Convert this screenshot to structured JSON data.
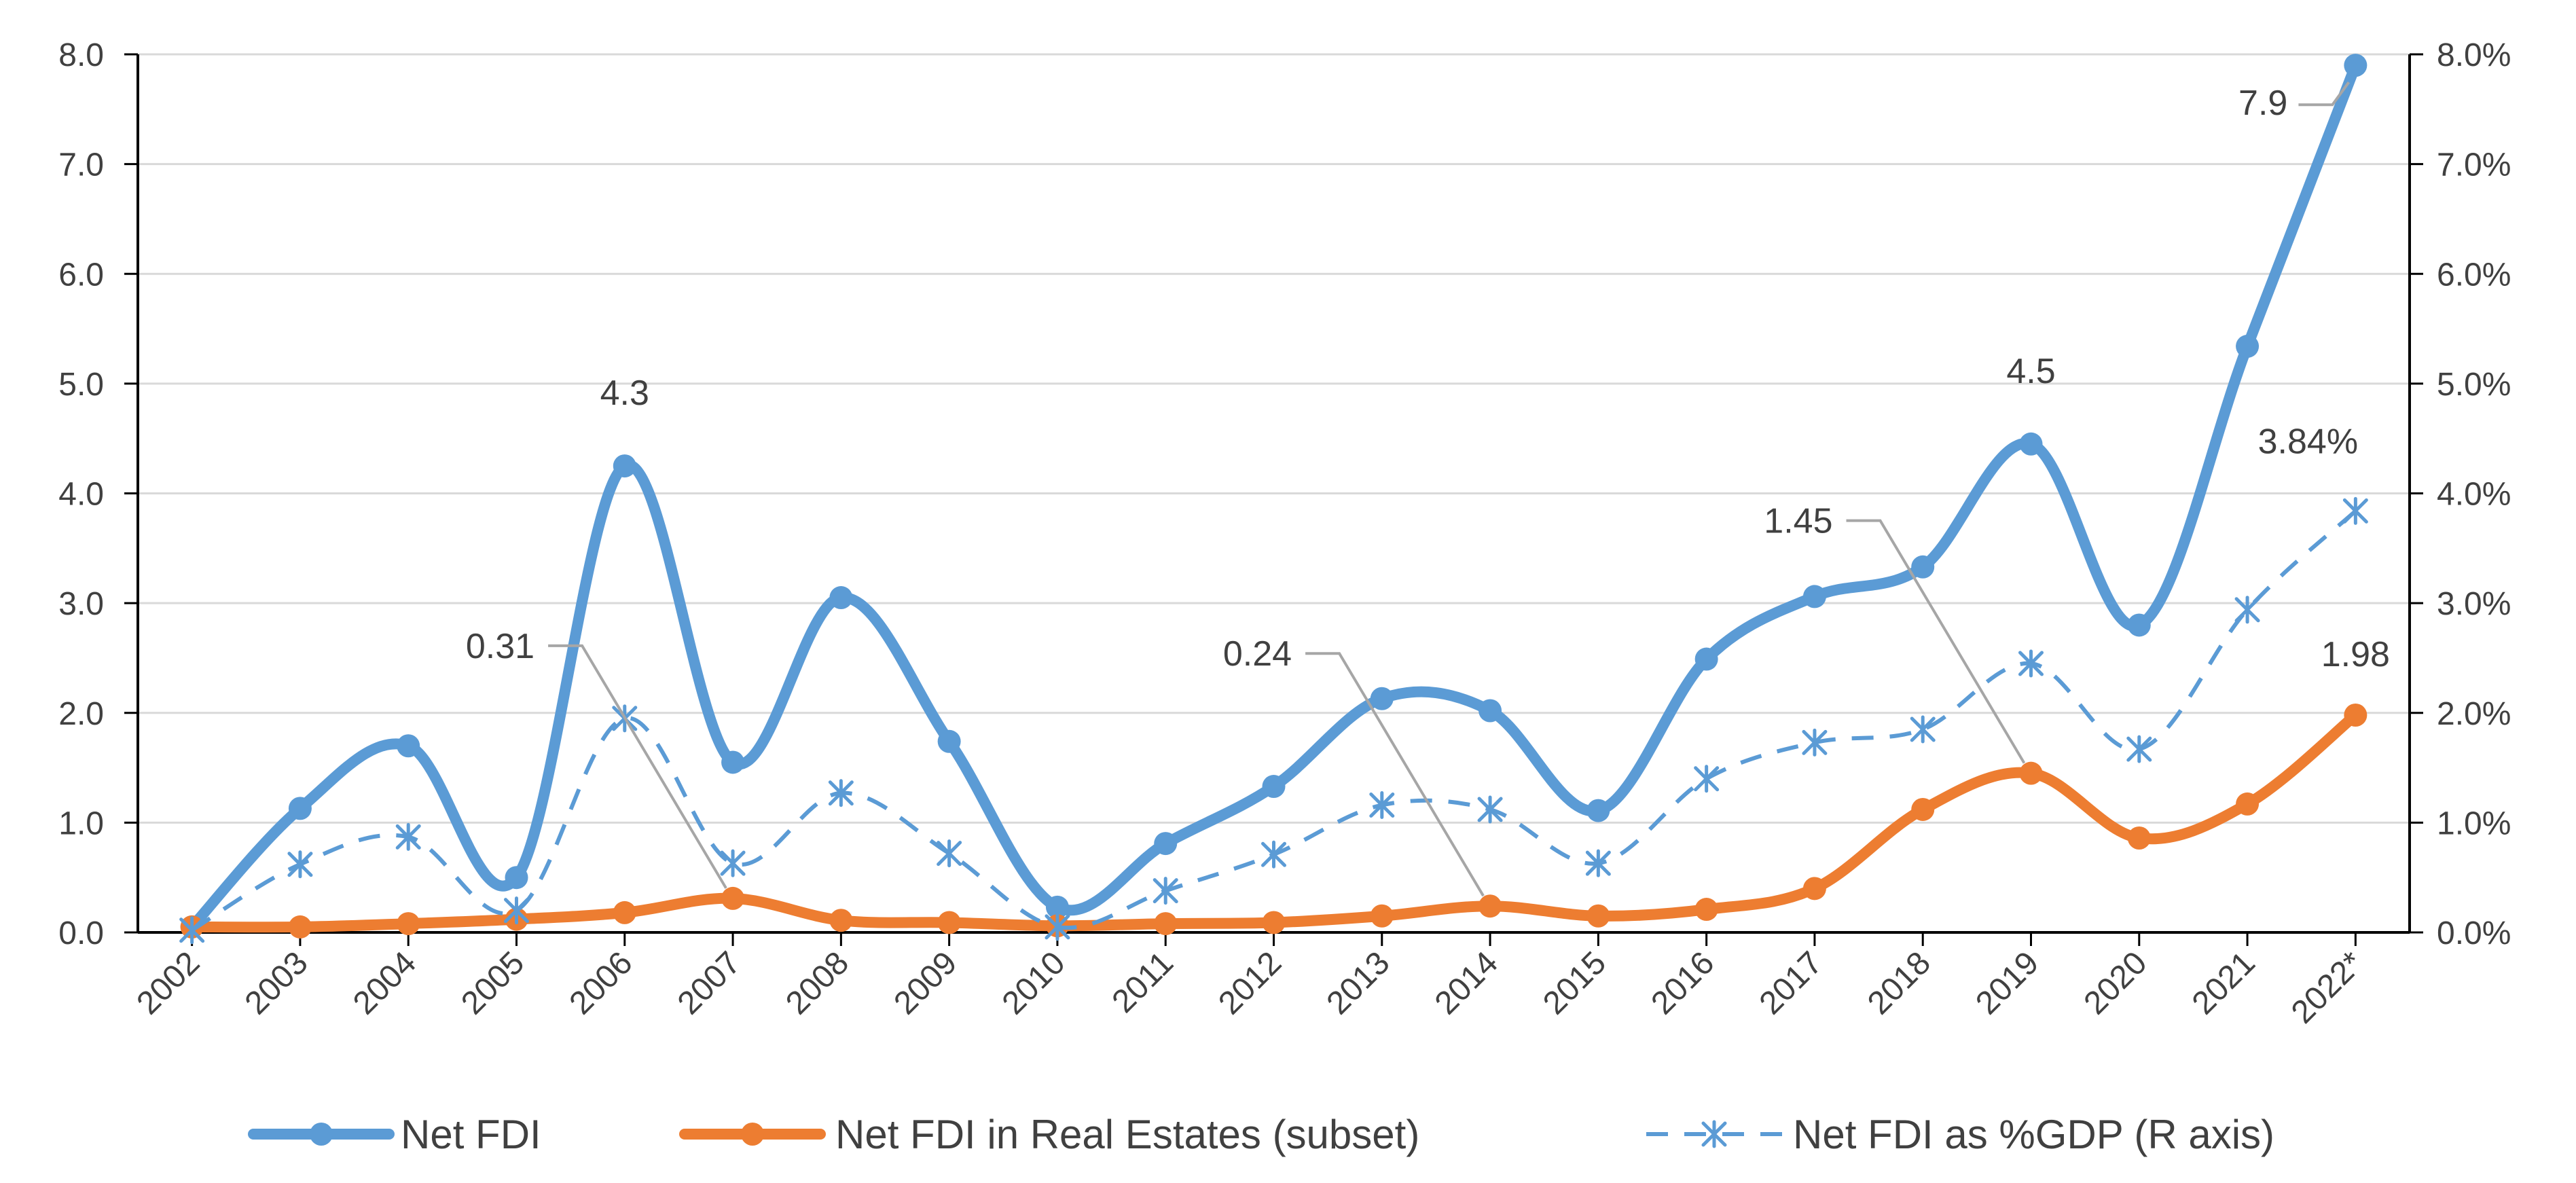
{
  "chart_data": {
    "type": "line",
    "categories": [
      "2002",
      "2003",
      "2004",
      "2005",
      "2006",
      "2007",
      "2008",
      "2009",
      "2010",
      "2011",
      "2012",
      "2013",
      "2014",
      "2015",
      "2016",
      "2017",
      "2018",
      "2019",
      "2020",
      "2021",
      "2022*"
    ],
    "y_left": {
      "min": 0,
      "max": 8,
      "step": 1,
      "tick_labels": [
        "0.0",
        "1.0",
        "2.0",
        "3.0",
        "4.0",
        "5.0",
        "6.0",
        "7.0",
        "8.0"
      ]
    },
    "y_right": {
      "min": 0,
      "max": 0.08,
      "step": 0.01,
      "tick_labels": [
        "0.0%",
        "1.0%",
        "2.0%",
        "3.0%",
        "4.0%",
        "5.0%",
        "6.0%",
        "7.0%",
        "8.0%"
      ]
    },
    "grid": true,
    "legend_position": "bottom",
    "series": [
      {
        "name": "Net FDI",
        "axis": "left",
        "color": "#5B9BD5",
        "style": "solid",
        "marker": "circle",
        "values": [
          0.05,
          1.13,
          1.7,
          0.5,
          4.25,
          1.55,
          3.05,
          1.74,
          0.23,
          0.81,
          1.33,
          2.13,
          2.02,
          1.11,
          2.49,
          3.06,
          3.33,
          4.45,
          2.8,
          5.34,
          7.9
        ]
      },
      {
        "name": "Net FDI in Real Estates (subset)",
        "axis": "left",
        "color": "#ED7D31",
        "style": "solid",
        "marker": "circle",
        "values": [
          0.05,
          0.05,
          0.08,
          0.12,
          0.18,
          0.31,
          0.11,
          0.09,
          0.06,
          0.08,
          0.09,
          0.15,
          0.24,
          0.15,
          0.21,
          0.4,
          1.12,
          1.45,
          0.86,
          1.17,
          1.98
        ]
      },
      {
        "name": "Net FDI as %GDP (R axis)",
        "axis": "right",
        "color": "#5B9BD5",
        "style": "dashed",
        "marker": "star",
        "values": [
          0.0002,
          0.0062,
          0.0087,
          0.002,
          0.0195,
          0.0063,
          0.0127,
          0.0072,
          0.0005,
          0.0038,
          0.0071,
          0.0116,
          0.0112,
          0.0063,
          0.014,
          0.0173,
          0.0185,
          0.0245,
          0.0167,
          0.0294,
          0.0384
        ]
      }
    ],
    "annotations": [
      {
        "text": "4.3",
        "series": 0,
        "index": 4,
        "leader": false
      },
      {
        "text": "4.5",
        "series": 0,
        "index": 17,
        "leader": false
      },
      {
        "text": "7.9",
        "series": 0,
        "index": 20,
        "leader": true
      },
      {
        "text": "0.31",
        "series": 1,
        "index": 5,
        "leader": true
      },
      {
        "text": "0.24",
        "series": 1,
        "index": 12,
        "leader": true
      },
      {
        "text": "1.45",
        "series": 1,
        "index": 17,
        "leader": true
      },
      {
        "text": "1.98",
        "series": 1,
        "index": 20,
        "leader": false
      },
      {
        "text": "3.84%",
        "series": 2,
        "index": 20,
        "leader": false
      }
    ]
  }
}
